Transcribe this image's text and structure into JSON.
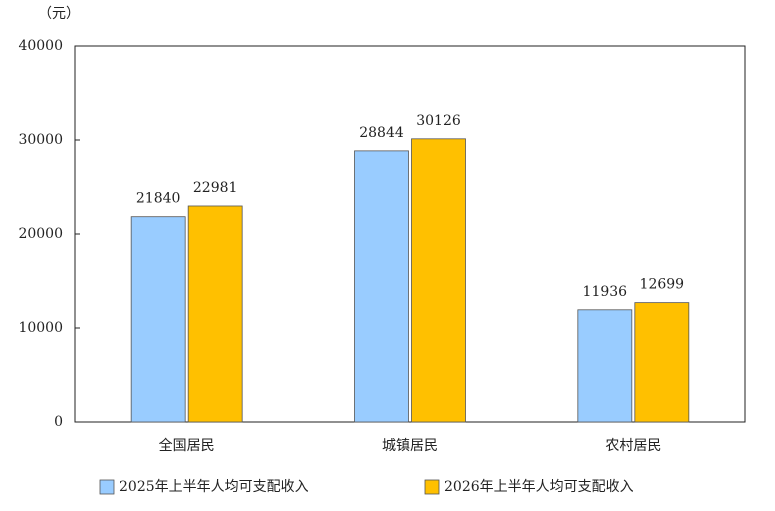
{
  "chart_data": {
    "type": "bar",
    "ylabel": "（元）",
    "categories": [
      "全国居民",
      "城镇居民",
      "农村居民"
    ],
    "series": [
      {
        "name": "2025年上半年人均可支配收入",
        "color": "#99ccff",
        "values": [
          21840,
          28844,
          11936
        ]
      },
      {
        "name": "2026年上半年人均可支配收入",
        "color": "#ffc000",
        "values": [
          22981,
          30126,
          12699
        ]
      }
    ],
    "ylim": [
      0,
      40000
    ],
    "yticks": [
      0,
      10000,
      20000,
      30000,
      40000
    ],
    "legend": "bottom"
  }
}
